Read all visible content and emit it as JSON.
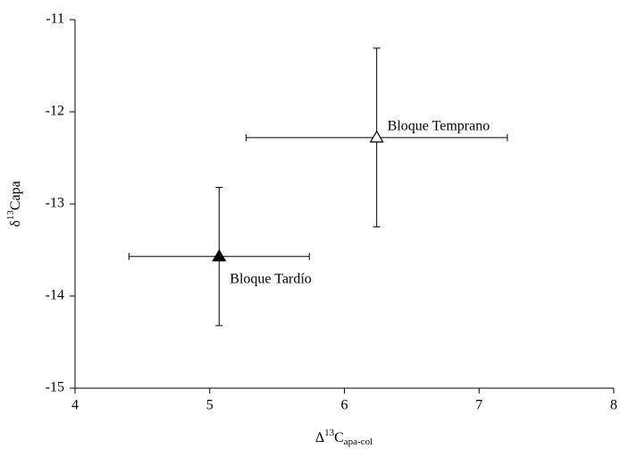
{
  "chart_data": {
    "type": "errorbar-scatter",
    "xlabel": [
      "Δ",
      "13",
      "C",
      "apa-col"
    ],
    "ylabel": [
      "δ",
      "13",
      "Capa"
    ],
    "xlim": [
      4,
      8
    ],
    "xticks": [
      4,
      5,
      6,
      7,
      8
    ],
    "ylim": [
      -15,
      -11
    ],
    "yticks": [
      -11,
      -12,
      -13,
      -14,
      -15
    ],
    "series": [
      {
        "name": "Bloque Temprano",
        "x": 6.24,
        "y": -12.28,
        "xerr": 0.97,
        "yerr": 0.97,
        "color": "#ffffff"
      },
      {
        "name": "Bloque Tardío",
        "x": 5.07,
        "y": -13.57,
        "xerr": 0.67,
        "yerr": 0.75,
        "color": "#000000"
      }
    ]
  }
}
